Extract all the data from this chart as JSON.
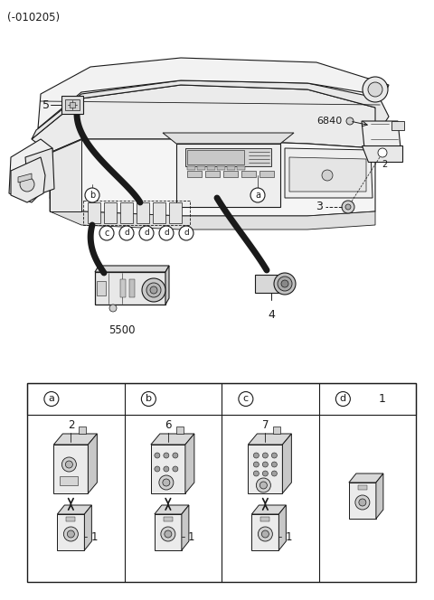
{
  "fig_width": 4.8,
  "fig_height": 6.64,
  "dpi": 100,
  "bg": "#ffffff",
  "lc": "#1a1a1a",
  "gray1": "#f0f0f0",
  "gray2": "#d8d8d8",
  "gray3": "#b0b0b0",
  "gray4": "#888888",
  "header": "(-010205)",
  "labels": {
    "5": "5",
    "4": "4",
    "3": "3",
    "6840": "6840",
    "5500": "5500",
    "a": "a",
    "b": "b",
    "c": "c",
    "d": "d"
  },
  "table_col_labels": [
    "a",
    "b",
    "c",
    "d"
  ],
  "table_part_top": [
    "2",
    "6",
    "7",
    ""
  ],
  "table_part_bot": [
    "1",
    "1",
    "1",
    "1"
  ]
}
